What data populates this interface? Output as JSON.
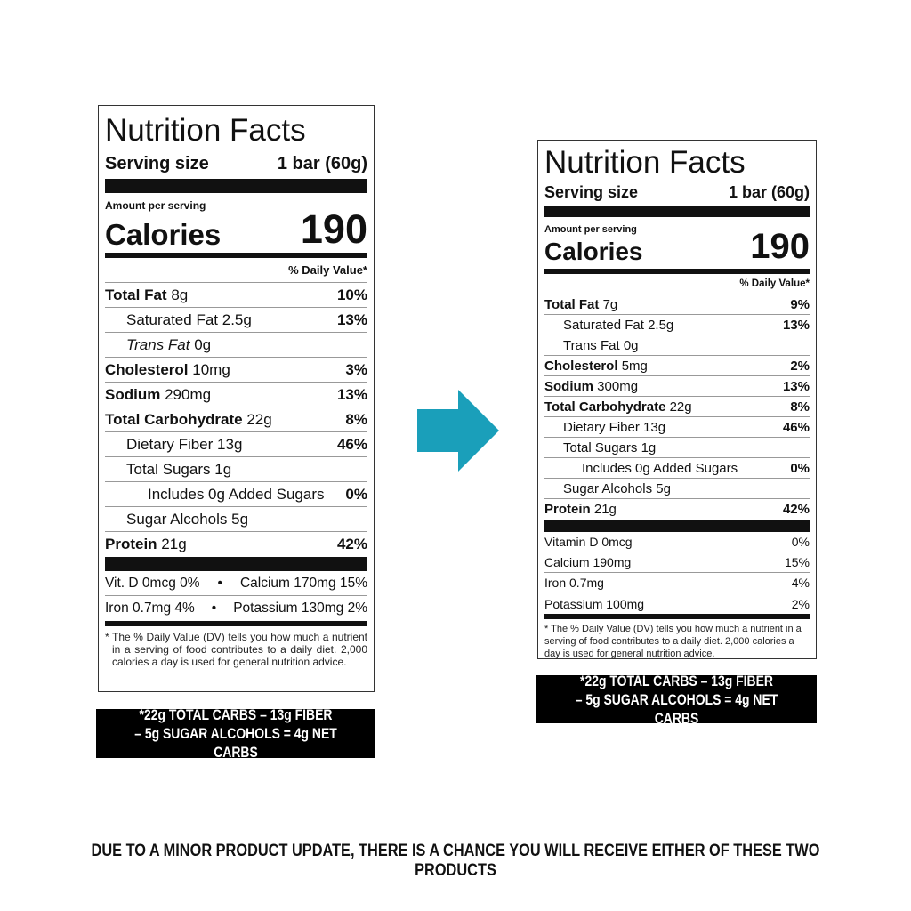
{
  "labels": [
    {
      "id": "old",
      "title": "Nutrition Facts",
      "serving_label": "Serving size",
      "serving_value": "1 bar (60g)",
      "amount_per_serving": "Amount per serving",
      "calories_label": "Calories",
      "calories_value": "190",
      "dv_header": "% Daily Value*",
      "nutrients": [
        {
          "name": "Total Fat",
          "amount": "8g",
          "dv": "10%",
          "bold": true,
          "indent": 0
        },
        {
          "name": "Saturated Fat",
          "amount": "2.5g",
          "dv": "13%",
          "bold": false,
          "indent": 1
        },
        {
          "name": "Trans Fat",
          "amount": "0g",
          "dv": "",
          "bold": false,
          "indent": 1,
          "italic": true
        },
        {
          "name": "Cholesterol",
          "amount": "10mg",
          "dv": "3%",
          "bold": true,
          "indent": 0
        },
        {
          "name": "Sodium",
          "amount": "290mg",
          "dv": "13%",
          "bold": true,
          "indent": 0
        },
        {
          "name": "Total Carbohydrate",
          "amount": "22g",
          "dv": "8%",
          "bold": true,
          "indent": 0
        },
        {
          "name": "Dietary Fiber",
          "amount": "13g",
          "dv": "46%",
          "bold": false,
          "indent": 1
        },
        {
          "name": "Total Sugars",
          "amount": "1g",
          "dv": "",
          "bold": false,
          "indent": 1
        },
        {
          "name": "Includes 0g Added Sugars",
          "amount": "",
          "dv": "0%",
          "bold": false,
          "indent": 2
        },
        {
          "name": "Sugar Alcohols",
          "amount": "5g",
          "dv": "",
          "bold": false,
          "indent": 1
        },
        {
          "name": "Protein",
          "amount": "21g",
          "dv": "42%",
          "bold": true,
          "indent": 0
        }
      ],
      "micros_rows": [
        [
          "Vit. D 0mcg 0%",
          "Calcium 170mg 15%"
        ],
        [
          "Iron 0.7mg 4%",
          "Potassium 130mg 2%"
        ]
      ],
      "footnote": "* The % Daily Value (DV) tells you how much a nutrient in a serving of food contributes to a daily diet. 2,000 calories a day is used for general nutrition advice.",
      "net_carbs": [
        "*22g TOTAL CARBS – 13g FIBER",
        "– 5g SUGAR ALCOHOLS = 4g NET CARBS"
      ]
    },
    {
      "id": "new",
      "title": "Nutrition Facts",
      "serving_label": "Serving size",
      "serving_value": "1 bar (60g)",
      "amount_per_serving": "Amount per serving",
      "calories_label": "Calories",
      "calories_value": "190",
      "dv_header": "% Daily Value*",
      "nutrients": [
        {
          "name": "Total Fat",
          "amount": "7g",
          "dv": "9%",
          "bold": true,
          "indent": 0
        },
        {
          "name": "Saturated Fat",
          "amount": "2.5g",
          "dv": "13%",
          "bold": false,
          "indent": 1
        },
        {
          "name": "Trans Fat",
          "amount": "0g",
          "dv": "",
          "bold": false,
          "indent": 1
        },
        {
          "name": "Cholesterol",
          "amount": "5mg",
          "dv": "2%",
          "bold": true,
          "indent": 0
        },
        {
          "name": "Sodium",
          "amount": "300mg",
          "dv": "13%",
          "bold": true,
          "indent": 0
        },
        {
          "name": "Total Carbohydrate",
          "amount": "22g",
          "dv": "8%",
          "bold": true,
          "indent": 0
        },
        {
          "name": "Dietary Fiber",
          "amount": "13g",
          "dv": "46%",
          "bold": false,
          "indent": 1
        },
        {
          "name": "Total Sugars",
          "amount": "1g",
          "dv": "",
          "bold": false,
          "indent": 1
        },
        {
          "name": "Includes 0g Added Sugars",
          "amount": "",
          "dv": "0%",
          "bold": false,
          "indent": 2
        },
        {
          "name": "Sugar Alcohols",
          "amount": "5g",
          "dv": "",
          "bold": false,
          "indent": 1
        },
        {
          "name": "Protein",
          "amount": "21g",
          "dv": "42%",
          "bold": true,
          "indent": 0
        }
      ],
      "micros": [
        {
          "name": "Vitamin D 0mcg",
          "dv": "0%"
        },
        {
          "name": "Calcium 190mg",
          "dv": "15%"
        },
        {
          "name": "Iron 0.7mg",
          "dv": "4%"
        },
        {
          "name": "Potassium 100mg",
          "dv": "2%"
        }
      ],
      "footnote": "* The % Daily Value (DV) tells you how much a nutrient in a serving of food contributes to a daily diet. 2,000 calories a day is used for general nutrition advice.",
      "net_carbs": [
        "*22g TOTAL CARBS – 13g FIBER",
        "– 5g SUGAR ALCOHOLS = 4g NET CARBS"
      ]
    }
  ],
  "arrow": {
    "icon": "arrow-right-icon",
    "color": "#1a9fba"
  },
  "notice": "DUE TO A MINOR PRODUCT UPDATE, THERE IS A CHANCE YOU WILL RECEIVE EITHER OF THESE TWO PRODUCTS"
}
